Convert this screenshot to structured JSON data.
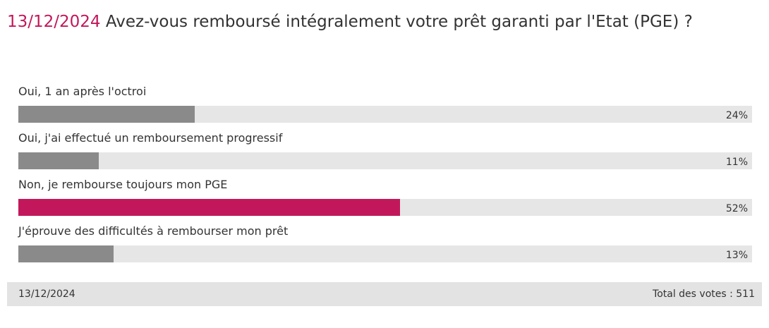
{
  "poll": {
    "date": "13/12/2024",
    "question": "Avez-vous remboursé intégralement votre prêt garanti par l'Etat (PGE) ?",
    "options": [
      {
        "label": "Oui, 1 an après l'octroi",
        "percent": 24,
        "percent_label": "24%",
        "highlight": false
      },
      {
        "label": "Oui, j'ai effectué un remboursement progressif",
        "percent": 11,
        "percent_label": "11%",
        "highlight": false
      },
      {
        "label": "Non, je rembourse toujours mon PGE",
        "percent": 52,
        "percent_label": "52%",
        "highlight": true
      },
      {
        "label": "J'éprouve des difficultés à rembourser mon prêt",
        "percent": 13,
        "percent_label": "13%",
        "highlight": false
      }
    ],
    "footer": {
      "date": "13/12/2024",
      "total_votes": "Total des votes : 511"
    },
    "colors": {
      "accent": "#c2185b",
      "bar_default": "#8a8a8a",
      "bar_track": "#e6e6e6",
      "footer_bg": "#e3e3e3"
    }
  }
}
